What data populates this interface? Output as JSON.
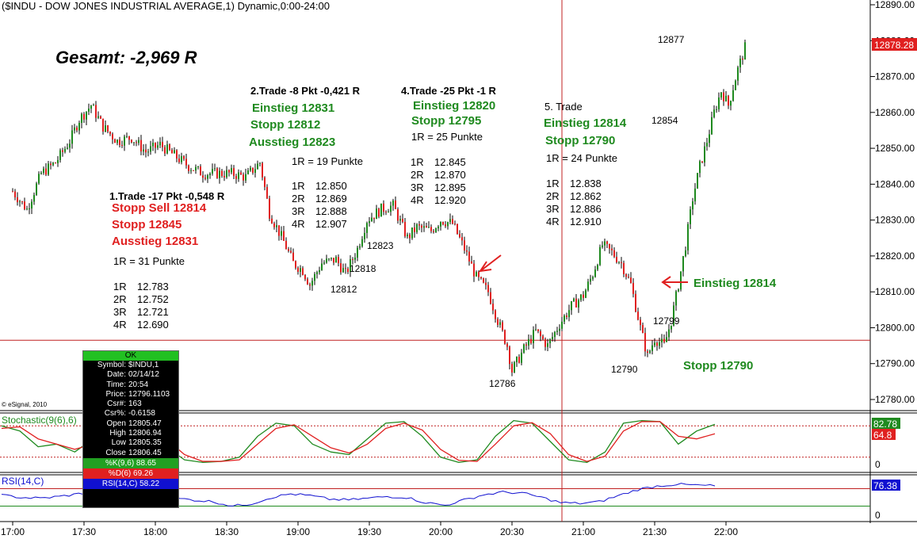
{
  "title": "($INDU - DOW JONES INDUSTRIAL AVERAGE,1) Dynamic,0:00-24:00",
  "gesamt": "Gesamt: -2,969 R",
  "copyright": "© eSignal, 2010",
  "last_price_tag": "12878.28",
  "chart_data": [
    {
      "type": "candlestick",
      "title": "($INDU - DOW JONES INDUSTRIAL AVERAGE,1) Dynamic,0:00-24:00",
      "ylim": [
        12775,
        12890
      ],
      "y_ticks": [
        "12890.00",
        "12880.00",
        "12870.00",
        "12860.00",
        "12850.00",
        "12840.00",
        "12830.00",
        "12820.00",
        "12810.00",
        "12800.00",
        "12790.00",
        "12780.00"
      ],
      "x_ticks": [
        "17:00",
        "17:30",
        "18:00",
        "18:30",
        "19:00",
        "19:30",
        "20:00",
        "20:30",
        "21:00",
        "21:30",
        "22:00"
      ],
      "price_path": [
        [
          "17:00",
          12838
        ],
        [
          "17:06",
          12833
        ],
        [
          "17:12",
          12843
        ],
        [
          "17:18",
          12846
        ],
        [
          "17:24",
          12852
        ],
        [
          "17:28",
          12858
        ],
        [
          "17:33",
          12862
        ],
        [
          "17:38",
          12856
        ],
        [
          "17:44",
          12852
        ],
        [
          "17:50",
          12853
        ],
        [
          "17:56",
          12849
        ],
        [
          "18:02",
          12851
        ],
        [
          "18:08",
          12848
        ],
        [
          "18:14",
          12845
        ],
        [
          "18:20",
          12843
        ],
        [
          "18:26",
          12843
        ],
        [
          "18:32",
          12843
        ],
        [
          "18:38",
          12842
        ],
        [
          "18:44",
          12846
        ],
        [
          "18:48",
          12832
        ],
        [
          "18:54",
          12824
        ],
        [
          "18:58",
          12818
        ],
        [
          "19:02",
          12816
        ],
        [
          "19:05",
          12812
        ],
        [
          "19:10",
          12818
        ],
        [
          "19:16",
          12819
        ],
        [
          "19:20",
          12815
        ],
        [
          "19:25",
          12822
        ],
        [
          "19:29",
          12830
        ],
        [
          "19:35",
          12833
        ],
        [
          "19:40",
          12834
        ],
        [
          "19:46",
          12825
        ],
        [
          "19:50",
          12828
        ],
        [
          "19:56",
          12827
        ],
        [
          "20:00",
          12830
        ],
        [
          "20:05",
          12829
        ],
        [
          "20:10",
          12822
        ],
        [
          "20:15",
          12814
        ],
        [
          "20:20",
          12810
        ],
        [
          "20:24",
          12802
        ],
        [
          "20:28",
          12795
        ],
        [
          "20:30",
          12788
        ],
        [
          "20:35",
          12794
        ],
        [
          "20:40",
          12799
        ],
        [
          "20:45",
          12795
        ],
        [
          "20:50",
          12801
        ],
        [
          "20:55",
          12806
        ],
        [
          "21:00",
          12809
        ],
        [
          "21:04",
          12815
        ],
        [
          "21:08",
          12823
        ],
        [
          "21:12",
          12821
        ],
        [
          "21:16",
          12818
        ],
        [
          "21:20",
          12812
        ],
        [
          "21:24",
          12800
        ],
        [
          "21:27",
          12792
        ],
        [
          "21:30",
          12797
        ],
        [
          "21:34",
          12795
        ],
        [
          "21:37",
          12802
        ],
        [
          "21:40",
          12812
        ],
        [
          "21:43",
          12823
        ],
        [
          "21:46",
          12836
        ],
        [
          "21:49",
          12845
        ],
        [
          "21:52",
          12852
        ],
        [
          "21:55",
          12860
        ],
        [
          "21:58",
          12866
        ],
        [
          "22:01",
          12862
        ],
        [
          "22:05",
          12872
        ],
        [
          "22:08",
          12878
        ]
      ],
      "horizontal_line": 12796.5,
      "vertical_line_time": "20:51",
      "annotations": [
        {
          "text": "12877",
          "price": 12877
        },
        {
          "text": "12854",
          "price": 12854
        },
        {
          "text": "12823",
          "price": 12823
        },
        {
          "text": "12818",
          "price": 12818
        },
        {
          "text": "12812",
          "price": 12812
        },
        {
          "text": "12786",
          "price": 12786
        },
        {
          "text": "12799",
          "price": 12799
        },
        {
          "text": "12790",
          "price": 12790
        }
      ]
    },
    {
      "type": "line",
      "title": "Stochastic(9(6),6)",
      "ylim": [
        0,
        100
      ],
      "y_ticks": [
        "82.78",
        "64.8",
        "0"
      ],
      "series": [
        {
          "name": "%K(9,6)",
          "color": "#1f8a1f",
          "values": [
            80,
            70,
            40,
            45,
            30,
            55,
            78,
            85,
            70,
            40,
            15,
            10,
            12,
            20,
            60,
            85,
            80,
            45,
            30,
            25,
            55,
            85,
            88,
            60,
            20,
            10,
            15,
            60,
            90,
            85,
            50,
            15,
            10,
            30,
            85,
            90,
            88,
            45,
            70,
            82.78
          ]
        },
        {
          "name": "%D(6)",
          "color": "#e02020",
          "values": [
            75,
            78,
            55,
            45,
            35,
            45,
            70,
            82,
            78,
            55,
            25,
            12,
            12,
            15,
            45,
            75,
            82,
            60,
            38,
            28,
            45,
            75,
            85,
            72,
            35,
            14,
            12,
            45,
            80,
            86,
            65,
            25,
            12,
            22,
            70,
            88,
            88,
            60,
            55,
            64.8
          ]
        }
      ]
    },
    {
      "type": "line",
      "title": "RSI(14,C)",
      "ylim": [
        0,
        100
      ],
      "y_ticks": [
        "76.38",
        "0"
      ],
      "series": [
        {
          "name": "RSI(14,C)",
          "color": "#1010d0",
          "values": [
            55,
            50,
            48,
            52,
            58,
            62,
            56,
            50,
            46,
            48,
            44,
            40,
            30,
            36,
            50,
            58,
            54,
            46,
            44,
            48,
            52,
            50,
            38,
            32,
            44,
            56,
            62,
            60,
            50,
            38,
            36,
            40,
            54,
            68,
            76,
            80,
            78,
            76.38
          ]
        }
      ]
    }
  ],
  "trades": {
    "t1": {
      "head": "1.Trade -17 Pkt -0,548 R",
      "l1": "Stopp Sell 12814",
      "l2": "Stopp 12845",
      "l3": "Ausstieg 12831",
      "r": "1R =    31 Punkte",
      "levels": [
        [
          "1R",
          "12.783"
        ],
        [
          "2R",
          "12.752"
        ],
        [
          "3R",
          "12.721"
        ],
        [
          "4R",
          "12.690"
        ]
      ]
    },
    "t2": {
      "head": "2.Trade -8 Pkt -0,421 R",
      "l1": "Einstieg 12831",
      "l2": "Stopp 12812",
      "l3": "Ausstieg 12823",
      "r": "1R =    19 Punkte",
      "levels": [
        [
          "1R",
          "12.850"
        ],
        [
          "2R",
          "12.869"
        ],
        [
          "3R",
          "12.888"
        ],
        [
          "4R",
          "12.907"
        ]
      ]
    },
    "t4": {
      "head": "4.Trade -25 Pkt -1 R",
      "l1": "Einstieg 12820",
      "l2": "Stopp 12795",
      "r": "1R =    25 Punkte",
      "levels": [
        [
          "1R",
          "12.845"
        ],
        [
          "2R",
          "12.870"
        ],
        [
          "3R",
          "12.895"
        ],
        [
          "4R",
          "12.920"
        ]
      ]
    },
    "t5": {
      "head": "5. Trade",
      "l1": "Einstieg 12814",
      "l2": "Stopp 12790",
      "r": "1R =    24 Punkte",
      "levels": [
        [
          "1R",
          "12.838"
        ],
        [
          "2R",
          "12.862"
        ],
        [
          "3R",
          "12.886"
        ],
        [
          "4R",
          "12.910"
        ]
      ]
    },
    "einstieg_arrow": "Einstieg 12814",
    "stopp_label": "Stopp 12790"
  },
  "infobox": {
    "ok": "OK",
    "rows": [
      [
        "Symbol:",
        "$INDU,1"
      ],
      [
        "Date:",
        "02/14/12"
      ],
      [
        "Time:",
        "20:54"
      ],
      [
        "Price:",
        "12796.1103"
      ],
      [
        "Csr#:",
        "163"
      ],
      [
        "Csr%:",
        "-0.6158"
      ],
      [
        "Open",
        "12805.47"
      ],
      [
        "High",
        "12806.94"
      ],
      [
        "Low",
        "12805.35"
      ],
      [
        "Close",
        "12806.45"
      ]
    ],
    "k": "%K(9,6) 88.65",
    "d": "%D(6) 69.26",
    "rsi": "RSI(14,C) 58.22"
  },
  "colors": {
    "up": "#1f8a1f",
    "down": "#e02020",
    "rsi": "#1010d0"
  }
}
